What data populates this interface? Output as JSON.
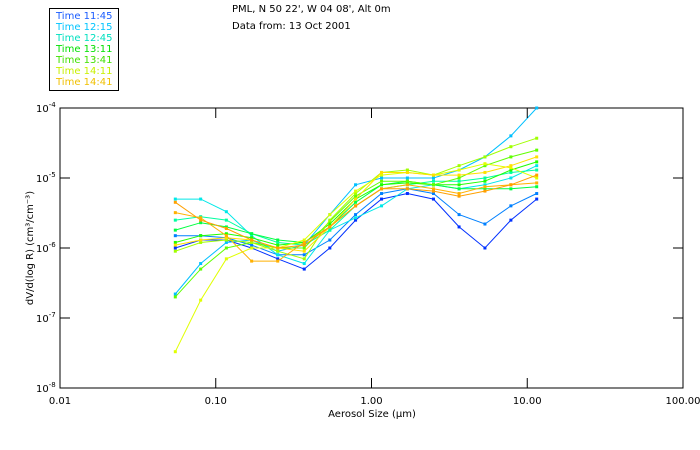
{
  "header": {
    "location": "PML, N 50 22', W 04 08', Alt 0m",
    "date": "Data from: 13 Oct 2001"
  },
  "legend": [
    {
      "label": "Time 11:45",
      "color": "#1a5cff"
    },
    {
      "label": "Time 12:15",
      "color": "#00c4ff"
    },
    {
      "label": "Time 12:45",
      "color": "#00e0c0"
    },
    {
      "label": "Time 13:11",
      "color": "#00e000"
    },
    {
      "label": "Time 13:41",
      "color": "#40e000"
    },
    {
      "label": "Time 14:11",
      "color": "#c8f000"
    },
    {
      "label": "Time 14:41",
      "color": "#f0c000"
    }
  ],
  "chart_data": {
    "type": "line",
    "xlabel": "Aerosol Size (µm)",
    "ylabel": "dV/d(log R) (cm³/cm⁻³)",
    "xscale": "log",
    "yscale": "log",
    "xlim": [
      0.01,
      100
    ],
    "ylim": [
      1e-08,
      0.0001
    ],
    "xticks": [
      "0.01",
      "0.10",
      "1.00",
      "10.00",
      "100.00"
    ],
    "yticks": [
      {
        "base": "10",
        "exp": "-4"
      },
      {
        "base": "10",
        "exp": "-5"
      },
      {
        "base": "10",
        "exp": "-6"
      },
      {
        "base": "10",
        "exp": "-7"
      },
      {
        "base": "10",
        "exp": "-8"
      }
    ],
    "x": [
      0.055,
      0.08,
      0.117,
      0.17,
      0.25,
      0.37,
      0.54,
      0.79,
      1.16,
      1.7,
      2.5,
      3.65,
      5.35,
      7.85,
      11.5
    ],
    "series": [
      {
        "color": "#0030ff",
        "values": [
          1e-06,
          1.3e-06,
          1.3e-06,
          1e-06,
          7e-07,
          5e-07,
          1e-06,
          2.5e-06,
          5e-06,
          6e-06,
          5e-06,
          2e-06,
          1e-06,
          2.5e-06,
          5e-06
        ]
      },
      {
        "color": "#0080ff",
        "values": [
          1.5e-06,
          1.5e-06,
          1.4e-06,
          1.1e-06,
          8e-07,
          8e-07,
          1.3e-06,
          3e-06,
          6e-06,
          7e-06,
          6e-06,
          3e-06,
          2.2e-06,
          4e-06,
          6e-06
        ]
      },
      {
        "color": "#00c0ff",
        "values": [
          2.2e-07,
          6e-07,
          1.2e-06,
          1.3e-06,
          9e-07,
          1.1e-06,
          3e-06,
          8e-06,
          1e-05,
          1e-05,
          1e-05,
          1.3e-05,
          2e-05,
          4e-05,
          0.0001
        ]
      },
      {
        "color": "#00e8e8",
        "values": [
          5e-06,
          5e-06,
          3.3e-06,
          1.5e-06,
          8e-07,
          6e-07,
          1.8e-06,
          2.7e-06,
          4e-06,
          7e-06,
          8e-06,
          7e-06,
          8e-06,
          1e-05,
          1.5e-05
        ]
      },
      {
        "color": "#00ffa0",
        "values": [
          2.5e-06,
          2.8e-06,
          2.5e-06,
          1.6e-06,
          1.2e-06,
          1.1e-06,
          1.8e-06,
          4e-06,
          7e-06,
          8e-06,
          9e-06,
          9e-06,
          1e-05,
          1.2e-05,
          1.3e-05
        ]
      },
      {
        "color": "#00ff40",
        "values": [
          1.8e-06,
          2.3e-06,
          2e-06,
          1.6e-06,
          1.3e-06,
          1.2e-06,
          2e-06,
          4.5e-06,
          8e-06,
          9e-06,
          8e-06,
          7e-06,
          7e-06,
          7e-06,
          7.5e-06
        ]
      },
      {
        "color": "#20ff00",
        "values": [
          1.2e-06,
          1.5e-06,
          1.6e-06,
          1.4e-06,
          1.1e-06,
          1.2e-06,
          2.2e-06,
          5e-06,
          8e-06,
          8.5e-06,
          8e-06,
          8e-06,
          9e-06,
          1.3e-05,
          1.7e-05
        ]
      },
      {
        "color": "#60ff00",
        "values": [
          2e-07,
          5e-07,
          1e-06,
          1.2e-06,
          1e-06,
          1e-06,
          2.4e-06,
          5.5e-06,
          9e-06,
          9e-06,
          8e-06,
          1e-05,
          1.5e-05,
          2e-05,
          2.5e-05
        ]
      },
      {
        "color": "#a0ff00",
        "values": [
          9e-07,
          1.2e-06,
          1.3e-06,
          1.2e-06,
          9e-07,
          7e-07,
          2.5e-06,
          6e-06,
          1.2e-05,
          1.3e-05,
          1.1e-05,
          1.5e-05,
          2e-05,
          2.8e-05,
          3.7e-05
        ]
      },
      {
        "color": "#e0ff00",
        "values": [
          3.3e-08,
          1.8e-07,
          7e-07,
          1e-06,
          1e-06,
          1.3e-06,
          3e-06,
          6.5e-06,
          1.1e-05,
          1.2e-05,
          1.1e-05,
          1.3e-05,
          1.6e-05,
          1.4e-05,
          1e-05
        ]
      },
      {
        "color": "#ffe000",
        "values": [
          1.1e-06,
          1.3e-06,
          1.4e-06,
          1.3e-06,
          1e-06,
          9e-07,
          2e-06,
          5e-06,
          1.2e-05,
          1.2e-05,
          1.1e-05,
          1.1e-05,
          1.2e-05,
          1.5e-05,
          2e-05
        ]
      },
      {
        "color": "#ffb000",
        "values": [
          3.2e-06,
          2.7e-06,
          1.5e-06,
          6.5e-07,
          6.5e-07,
          1.2e-06,
          2e-06,
          4e-06,
          7e-06,
          8e-06,
          7e-06,
          6e-06,
          7.5e-06,
          8e-06,
          8.5e-06
        ]
      },
      {
        "color": "#ffa000",
        "values": [
          4.5e-06,
          2.5e-06,
          1.9e-06,
          1.3e-06,
          1e-06,
          1.1e-06,
          2e-06,
          4e-06,
          7e-06,
          7e-06,
          6.5e-06,
          5.5e-06,
          6.5e-06,
          8e-06,
          1.1e-05
        ]
      }
    ]
  }
}
